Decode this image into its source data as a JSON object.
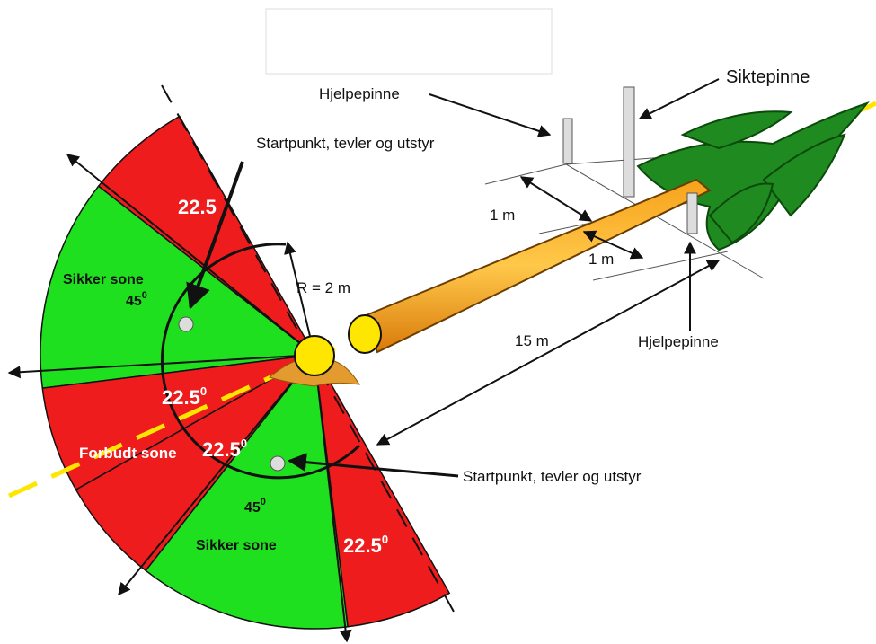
{
  "labels": {
    "hjelpepinne_top": "Hjelpepinne",
    "siktepinne": "Siktepinne",
    "startpunkt_top": "Startpunkt, tevler og utstyr",
    "red_top": "22.5",
    "sikker_top": "Sikker sone",
    "angle_top": {
      "text": "45",
      "sup": "0"
    },
    "radius": "R = 2 m",
    "dist_1m_a": "1 m",
    "dist_1m_b": "1 m",
    "dist_15m": "15 m",
    "hjelpepinne_right": "Hjelpepinne",
    "red_center": {
      "text": "22.5",
      "sup": "0"
    },
    "forbudt": "Forbudt sone",
    "red_center2": {
      "text": "22.5",
      "sup": "0"
    },
    "startpunkt_bottom": "Startpunkt, tevler og utstyr",
    "angle_bottom": {
      "text": "45",
      "sup": "0"
    },
    "sikker_bottom": "Sikker sone",
    "red_bottom": {
      "text": "22.5",
      "sup": "0"
    }
  }
}
